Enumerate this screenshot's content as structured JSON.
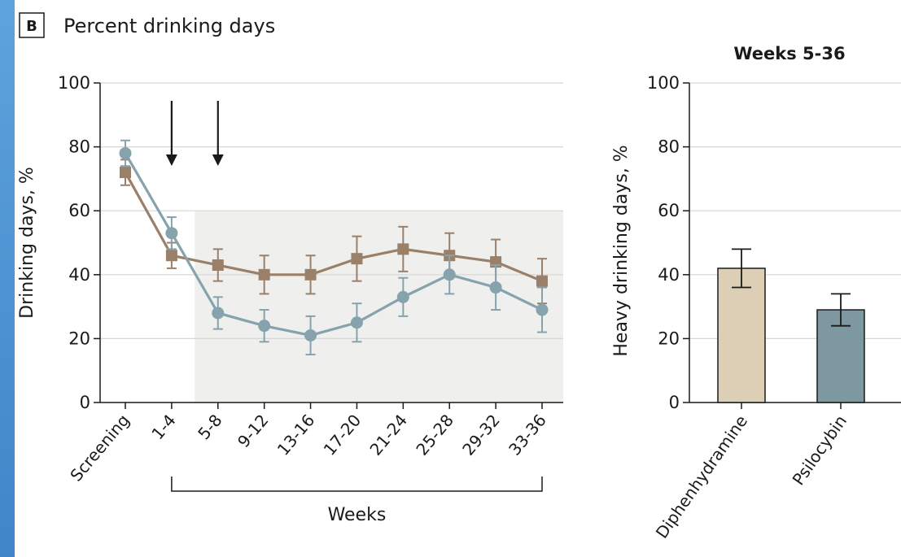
{
  "panel_letter": "B",
  "title": "Percent drinking days",
  "colors": {
    "diphenhydramine": "#9a8068",
    "psilocybin": "#86a3ad",
    "diphenhydramine_bar": "#dccfb6",
    "psilocybin_bar": "#7e98a1",
    "shade": "#efefee",
    "grid": "#d6d6d6"
  },
  "chart_data": [
    {
      "type": "line",
      "ylabel": "Drinking days, %",
      "xlabel": "Weeks",
      "ylim": [
        0,
        100
      ],
      "yticks": [
        0,
        20,
        40,
        60,
        80,
        100
      ],
      "categories": [
        "Screening",
        "1-4",
        "5-8",
        "9-12",
        "13-16",
        "17-20",
        "21-24",
        "25-28",
        "29-32",
        "33-36"
      ],
      "dose_arrows_at": [
        "1-4",
        "5-8"
      ],
      "shaded_region": {
        "from": "5-8",
        "to": "33-36",
        "ymax": 60
      },
      "grid": true,
      "series": [
        {
          "key": "diphenhydramine",
          "marker": "square",
          "values": [
            72,
            46,
            43,
            40,
            40,
            45,
            48,
            46,
            44,
            38
          ],
          "err": [
            4,
            4,
            5,
            6,
            6,
            7,
            7,
            7,
            7,
            7
          ]
        },
        {
          "key": "psilocybin",
          "marker": "circle",
          "values": [
            78,
            53,
            28,
            24,
            21,
            25,
            33,
            40,
            36,
            29
          ],
          "err": [
            4,
            5,
            5,
            5,
            6,
            6,
            6,
            6,
            7,
            7
          ]
        }
      ]
    },
    {
      "type": "bar",
      "title": "Weeks 5-36",
      "ylabel": "Heavy drinking days, %",
      "ylim": [
        0,
        100
      ],
      "yticks": [
        0,
        20,
        40,
        60,
        80,
        100
      ],
      "grid": true,
      "categories": [
        "Diphenhydramine",
        "Psilocybin"
      ],
      "values": [
        42,
        29
      ],
      "err": [
        6,
        5
      ]
    }
  ]
}
